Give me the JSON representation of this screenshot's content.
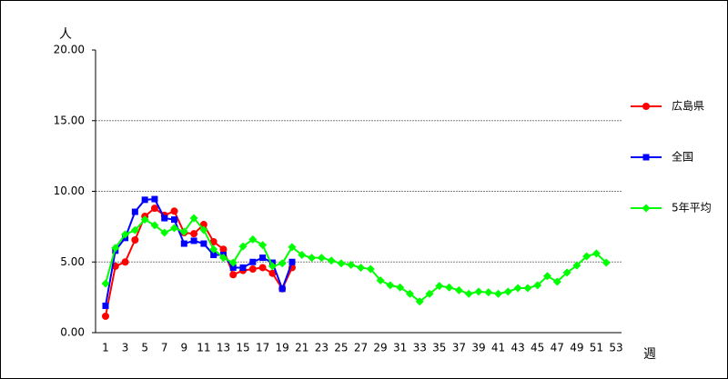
{
  "chart_data": {
    "type": "line",
    "y_label": "人",
    "x_label": "週",
    "categories": [
      1,
      null,
      3,
      null,
      5,
      null,
      7,
      null,
      9,
      null,
      11,
      null,
      13,
      null,
      15,
      null,
      17,
      null,
      19,
      null,
      21,
      null,
      23,
      null,
      25,
      null,
      27,
      null,
      29,
      null,
      31,
      null,
      33,
      null,
      35,
      null,
      37,
      null,
      39,
      null,
      41,
      null,
      43,
      null,
      45,
      null,
      47,
      null,
      49,
      null,
      51,
      null,
      53
    ],
    "ylim": [
      0,
      20
    ],
    "yticks": [
      {
        "value": 0,
        "label": "0.00"
      },
      {
        "value": 5,
        "label": "5.00"
      },
      {
        "value": 10,
        "label": "10.00"
      },
      {
        "value": 15,
        "label": "15.00"
      },
      {
        "value": 20,
        "label": "20.00"
      }
    ],
    "grid": true,
    "legend": "right",
    "series": [
      {
        "name": "広島県",
        "color": "#ff0000",
        "marker": "circle",
        "values": [
          1.16,
          4.7,
          5.0,
          6.56,
          8.23,
          8.8,
          8.3,
          8.6,
          7.07,
          7.0,
          7.65,
          6.43,
          5.9,
          4.1,
          4.4,
          4.5,
          4.6,
          4.2,
          3.1,
          4.6,
          null,
          null,
          null,
          null,
          null,
          null,
          null,
          null,
          null,
          null,
          null,
          null,
          null,
          null,
          null,
          null,
          null,
          null,
          null,
          null,
          null,
          null,
          null,
          null,
          null,
          null,
          null,
          null,
          null,
          null,
          null,
          null,
          null
        ]
      },
      {
        "name": "全国",
        "color": "#0000ff",
        "marker": "square",
        "values": [
          1.9,
          5.8,
          6.7,
          8.55,
          9.4,
          9.45,
          8.1,
          8.0,
          6.3,
          6.5,
          6.3,
          5.5,
          5.5,
          4.6,
          4.6,
          5.0,
          5.3,
          4.95,
          3.1,
          5.0,
          null,
          null,
          null,
          null,
          null,
          null,
          null,
          null,
          null,
          null,
          null,
          null,
          null,
          null,
          null,
          null,
          null,
          null,
          null,
          null,
          null,
          null,
          null,
          null,
          null,
          null,
          null,
          null,
          null,
          null,
          null,
          null,
          null
        ]
      },
      {
        "name": "5年平均",
        "color": "#00ff00",
        "marker": "diamond",
        "values": [
          3.47,
          6.0,
          6.95,
          7.25,
          8.0,
          7.6,
          7.07,
          7.4,
          7.14,
          8.1,
          7.27,
          5.9,
          5.3,
          4.95,
          6.1,
          6.6,
          6.2,
          4.7,
          4.9,
          6.05,
          5.5,
          5.3,
          5.3,
          5.1,
          4.9,
          4.8,
          4.6,
          4.5,
          3.7,
          3.35,
          3.2,
          2.75,
          2.2,
          2.75,
          3.3,
          3.2,
          3.0,
          2.75,
          2.9,
          2.85,
          2.75,
          2.9,
          3.15,
          3.15,
          3.35,
          4.0,
          3.6,
          4.25,
          4.75,
          5.4,
          5.6,
          4.95,
          null
        ]
      }
    ]
  }
}
